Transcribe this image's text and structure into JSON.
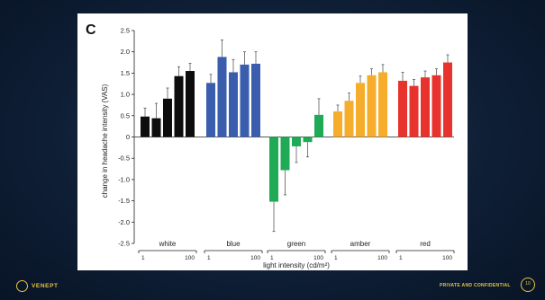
{
  "footer": {
    "logo_text": "VENEPT",
    "label": "PRIVATE AND CONFIDENTIAL",
    "page_number": "10"
  },
  "colors": {
    "white": "#0d0d0d",
    "blue": "#3a5dae",
    "green": "#1faa55",
    "amber": "#f7ad2c",
    "red": "#e8322d"
  },
  "chart_data": {
    "type": "bar",
    "panel_label": "C",
    "ylabel": "change in headache intensity (VAS)",
    "xlabel": "light intensity (cd/m²)",
    "ylim": [
      -2.5,
      2.5
    ],
    "yticks": [
      "2.5",
      "2.0",
      "1.5",
      "1.0",
      "0.5",
      "0",
      "-0.5",
      "-1.0",
      "-1.5",
      "-2.0",
      "-2.5"
    ],
    "grid": false,
    "groups": [
      {
        "name": "white",
        "color": "#0d0d0d",
        "values": [
          0.48,
          0.44,
          0.9,
          1.43,
          1.55
        ],
        "errors": [
          0.2,
          0.35,
          0.25,
          0.22,
          0.18
        ],
        "range_low": "1",
        "range_high": "100"
      },
      {
        "name": "blue",
        "color": "#3a5dae",
        "values": [
          1.27,
          1.88,
          1.52,
          1.7,
          1.72
        ],
        "errors": [
          0.2,
          0.4,
          0.3,
          0.3,
          0.28
        ],
        "range_low": "1",
        "range_high": "100"
      },
      {
        "name": "green",
        "color": "#1faa55",
        "values": [
          -1.52,
          -0.78,
          -0.22,
          -0.12,
          0.52
        ],
        "errors": [
          0.7,
          0.58,
          0.38,
          0.35,
          0.38
        ],
        "range_low": "1",
        "range_high": "100"
      },
      {
        "name": "amber",
        "color": "#f7ad2c",
        "values": [
          0.6,
          0.85,
          1.27,
          1.45,
          1.52
        ],
        "errors": [
          0.15,
          0.18,
          0.16,
          0.15,
          0.18
        ],
        "range_low": "1",
        "range_high": "100"
      },
      {
        "name": "red",
        "color": "#e8322d",
        "values": [
          1.32,
          1.2,
          1.4,
          1.45,
          1.75
        ],
        "errors": [
          0.2,
          0.15,
          0.15,
          0.15,
          0.18
        ],
        "range_low": "1",
        "range_high": "100"
      }
    ]
  }
}
